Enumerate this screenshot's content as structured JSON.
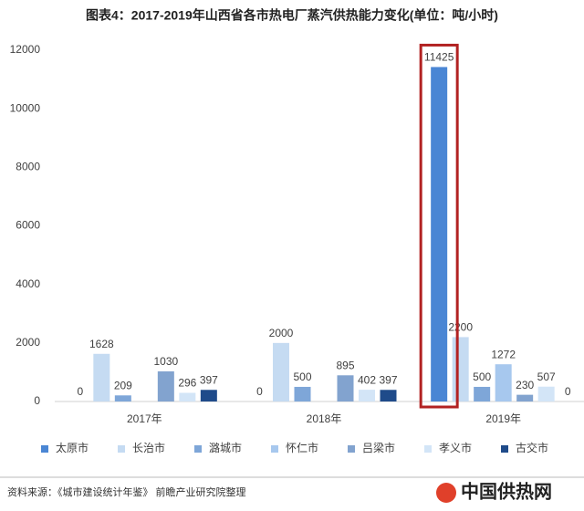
{
  "chart_data": {
    "type": "bar",
    "title": "图表4：2017-2019年山西省各市热电厂蒸汽供热能力变化(单位：吨/小时)",
    "categories": [
      "2017年",
      "2018年",
      "2019年"
    ],
    "series": [
      {
        "name": "太原市",
        "color": "#4a86d4",
        "values": [
          0,
          0,
          11425
        ]
      },
      {
        "name": "长治市",
        "color": "#c5dbf2",
        "values": [
          1628,
          2000,
          2200
        ]
      },
      {
        "name": "潞城市",
        "color": "#7ea6d8",
        "values": [
          209,
          500,
          500
        ]
      },
      {
        "name": "怀仁市",
        "color": "#a7c8ee",
        "values": [
          null,
          null,
          1272
        ]
      },
      {
        "name": "吕梁市",
        "color": "#82a3cf",
        "values": [
          1030,
          895,
          230
        ]
      },
      {
        "name": "孝义市",
        "color": "#d3e5f7",
        "values": [
          296,
          402,
          507
        ]
      },
      {
        "name": "古交市",
        "color": "#1f4b8a",
        "values": [
          397,
          397,
          0
        ]
      }
    ],
    "ylim": [
      0,
      12000
    ],
    "yticks": [
      0,
      2000,
      4000,
      6000,
      8000,
      10000,
      12000
    ],
    "grid": false,
    "source": "资料来源：《城市建设统计年鉴》 前瞻产业研究院整理",
    "logo": "中国供热网"
  }
}
